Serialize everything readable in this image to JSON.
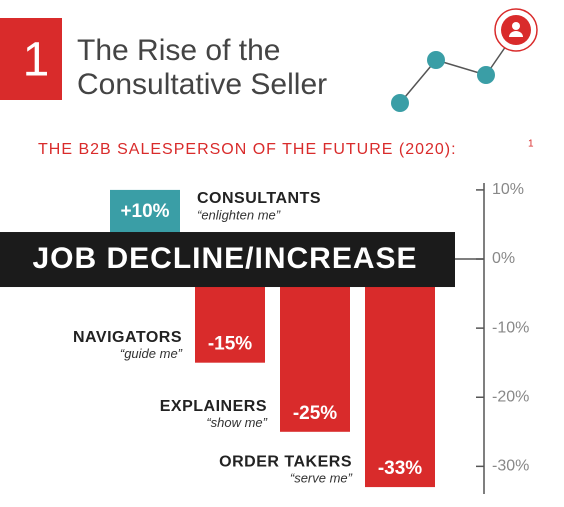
{
  "header": {
    "number": "1",
    "title": "The Rise of the Consultative Seller",
    "subtitle": "THE B2B SALESPERSON OF THE FUTURE (2020):",
    "footnote": "1"
  },
  "chart_data": {
    "type": "bar",
    "banner": "JOB DECLINE/INCREASE",
    "categories": [
      "CONSULTANTS",
      "NAVIGATORS",
      "EXPLAINERS",
      "ORDER TAKERS"
    ],
    "taglines": [
      "“enlighten me”",
      "“guide me”",
      "“show me”",
      "“serve me”"
    ],
    "values": [
      10,
      -15,
      -25,
      -33
    ],
    "value_labels": [
      "+10%",
      "-15%",
      "-25%",
      "-33%"
    ],
    "colors": [
      "#3a9ea6",
      "#d92b2b",
      "#d92b2b",
      "#d92b2b"
    ],
    "ylim": [
      -34,
      11
    ],
    "yticks": [
      {
        "value": 10,
        "label": "10%"
      },
      {
        "value": 0,
        "label": "0%"
      },
      {
        "value": -10,
        "label": "-10%"
      },
      {
        "value": -20,
        "label": "-20%"
      },
      {
        "value": -30,
        "label": "-30%"
      }
    ]
  }
}
